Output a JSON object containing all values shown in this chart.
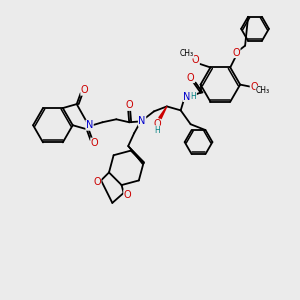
{
  "bg_color": "#ebebeb",
  "fig_size": [
    3.0,
    3.0
  ],
  "dpi": 100,
  "bond_color": "#000000",
  "bond_width": 1.3,
  "atom_colors": {
    "N": "#0000cc",
    "O": "#cc0000",
    "H": "#008080",
    "C": "#000000"
  },
  "font_size_atom": 7.0,
  "font_size_small": 5.5
}
